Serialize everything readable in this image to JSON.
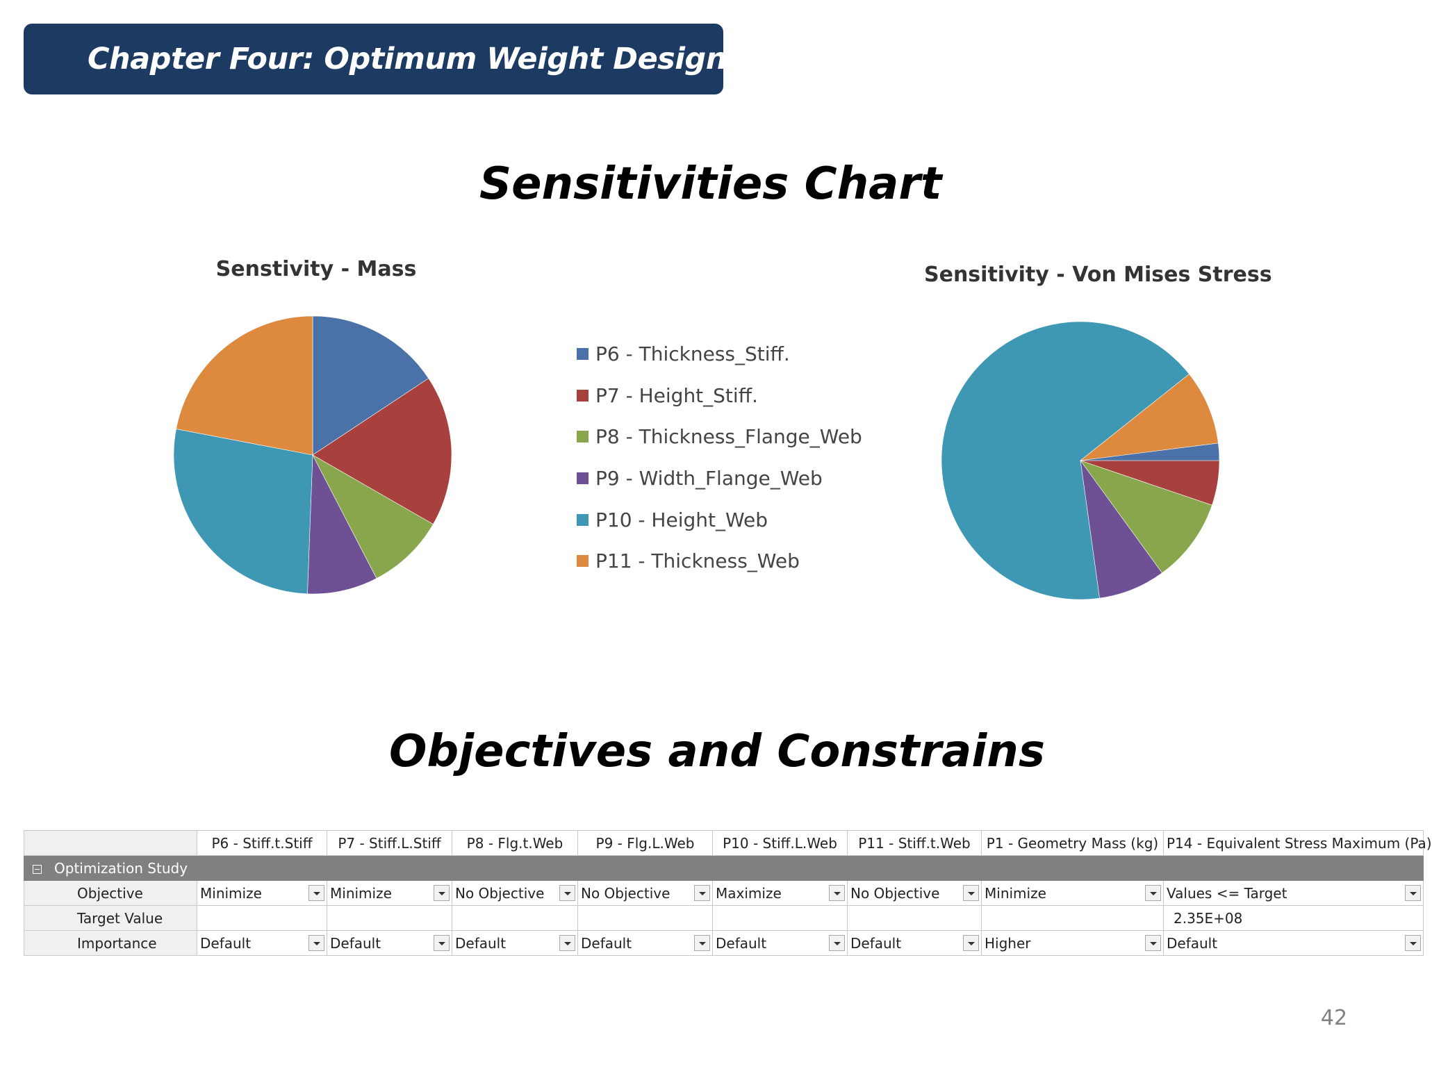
{
  "chapter_title": "Chapter Four: Optimum Weight Design",
  "sensitivities_heading": "Sensitivities Chart",
  "objectives_heading": "Objectives and Constrains",
  "page_number": "42",
  "legend": [
    {
      "label": "P6 - Thickness_Stiff.",
      "color": "#4a72a8"
    },
    {
      "label": "P7 - Height_Stiff.",
      "color": "#a8403d"
    },
    {
      "label": "P8 - Thickness_Flange_Web",
      "color": "#8aa64c"
    },
    {
      "label": "P9 - Width_Flange_Web",
      "color": "#6e5194"
    },
    {
      "label": "P10 - Height_Web",
      "color": "#3e97b3"
    },
    {
      "label": "P11 - Thickness_Web",
      "color": "#dd8a3e"
    }
  ],
  "chart_data": [
    {
      "type": "pie",
      "title": "Senstivity - Mass",
      "start_angle_deg": 0,
      "categories": [
        "P6 - Thickness_Stiff.",
        "P7 - Height_Stiff.",
        "P8 - Thickness_Flange_Web",
        "P9 - Width_Flange_Web",
        "P10 - Height_Web",
        "P11 - Thickness_Web"
      ],
      "values": [
        15.7,
        17.6,
        9.1,
        8.2,
        27.4,
        22.0
      ],
      "colors": [
        "#4a72a8",
        "#a8403d",
        "#8aa64c",
        "#6e5194",
        "#3e97b3",
        "#dd8a3e"
      ]
    },
    {
      "type": "pie",
      "title": "Sensitivity - Von Mises Stress",
      "start_angle_deg": 90,
      "categories": [
        "P7 - Height_Stiff.",
        "P8 - Thickness_Flange_Web",
        "P9 - Width_Flange_Web",
        "P10 - Height_Web",
        "P11 - Thickness_Web",
        "P6 - Thickness_Stiff."
      ],
      "values": [
        5.2,
        9.8,
        7.8,
        66.5,
        8.7,
        2.0
      ],
      "colors": [
        "#a8403d",
        "#8aa64c",
        "#6e5194",
        "#3e97b3",
        "#dd8a3e",
        "#4a72a8"
      ]
    }
  ],
  "table": {
    "columns": [
      "P6 - Stiff.t.Stiff",
      "P7 - Stiff.L.Stiff",
      "P8 - Flg.t.Web",
      "P9 - Flg.L.Web",
      "P10 - Stiff.L.Web",
      "P11 - Stiff.t.Web",
      "P1 - Geometry Mass (kg)",
      "P14 - Equivalent Stress Maximum (Pa)"
    ],
    "study_label": "Optimization Study",
    "objective_label": "Objective",
    "objective_values": [
      "Minimize",
      "Minimize",
      "No Objective",
      "No Objective",
      "Maximize",
      "No Objective",
      "Minimize",
      "Values <= Target"
    ],
    "target_label": "Target Value",
    "target_values": [
      "",
      "",
      "",
      "",
      "",
      "",
      "",
      "2.35E+08"
    ],
    "importance_label": "Importance",
    "importance_values": [
      "Default",
      "Default",
      "Default",
      "Default",
      "Default",
      "Default",
      "Higher",
      "Default"
    ]
  }
}
